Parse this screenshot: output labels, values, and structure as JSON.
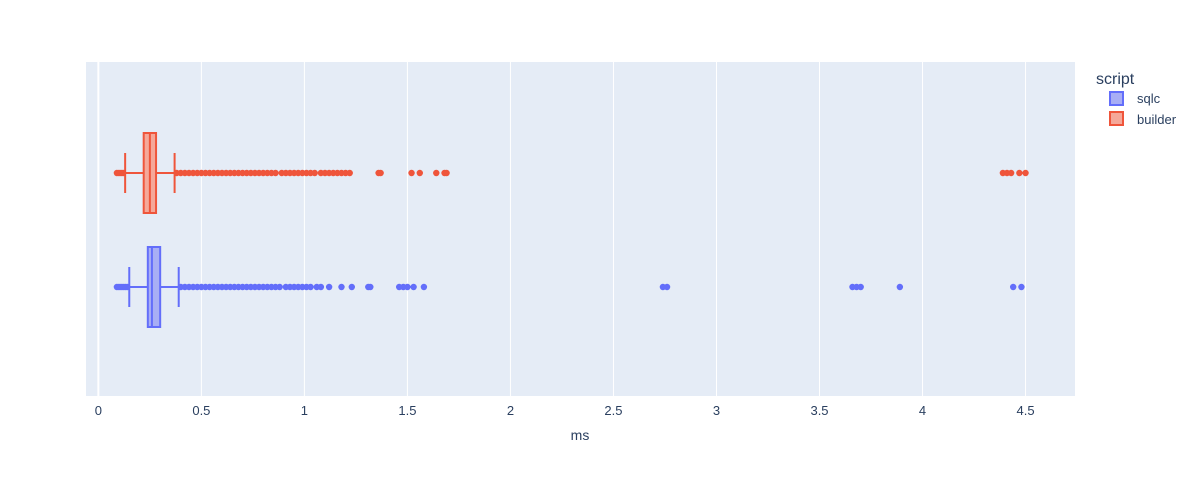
{
  "chart_data": {
    "type": "box",
    "orientation": "horizontal",
    "xlabel": "ms",
    "xlim": [
      -0.06,
      4.74
    ],
    "x_ticks": [
      0,
      0.5,
      1,
      1.5,
      2,
      2.5,
      3,
      3.5,
      4,
      4.5
    ],
    "x_tick_labels": [
      "0",
      "0.5",
      "1",
      "1.5",
      "2",
      "2.5",
      "3",
      "3.5",
      "4",
      "4.5"
    ],
    "grid": true,
    "legend": {
      "title": "script",
      "placement": "top-right"
    },
    "series": [
      {
        "name": "sqlc",
        "color": "#636efa",
        "fill": "#a8aef5",
        "lower_fence": 0.15,
        "q1": 0.24,
        "median": 0.26,
        "q3": 0.3,
        "upper_fence": 0.39,
        "outliers": [
          0.09,
          0.1,
          0.11,
          0.12,
          0.13,
          0.14,
          0.4,
          0.42,
          0.44,
          0.46,
          0.48,
          0.5,
          0.52,
          0.54,
          0.56,
          0.58,
          0.6,
          0.62,
          0.64,
          0.66,
          0.68,
          0.7,
          0.72,
          0.74,
          0.76,
          0.78,
          0.8,
          0.82,
          0.84,
          0.86,
          0.88,
          0.91,
          0.93,
          0.95,
          0.97,
          0.99,
          1.01,
          1.03,
          1.06,
          1.08,
          1.12,
          1.18,
          1.23,
          1.31,
          1.32,
          1.46,
          1.48,
          1.5,
          1.53,
          1.58,
          2.74,
          2.76,
          3.66,
          3.68,
          3.7,
          3.89,
          4.44,
          4.48
        ]
      },
      {
        "name": "builder",
        "color": "#ef553b",
        "fill": "#f5a899",
        "lower_fence": 0.13,
        "q1": 0.22,
        "median": 0.25,
        "q3": 0.28,
        "upper_fence": 0.37,
        "outliers": [
          0.09,
          0.1,
          0.11,
          0.12,
          0.38,
          0.4,
          0.42,
          0.44,
          0.46,
          0.48,
          0.5,
          0.52,
          0.54,
          0.56,
          0.58,
          0.6,
          0.62,
          0.64,
          0.66,
          0.68,
          0.7,
          0.72,
          0.74,
          0.76,
          0.78,
          0.8,
          0.82,
          0.84,
          0.86,
          0.89,
          0.91,
          0.93,
          0.95,
          0.97,
          0.99,
          1.01,
          1.03,
          1.05,
          1.08,
          1.1,
          1.12,
          1.14,
          1.16,
          1.18,
          1.2,
          1.22,
          1.36,
          1.37,
          1.52,
          1.56,
          1.64,
          1.68,
          1.69,
          4.39,
          4.41,
          4.43,
          4.47,
          4.5
        ]
      }
    ]
  }
}
